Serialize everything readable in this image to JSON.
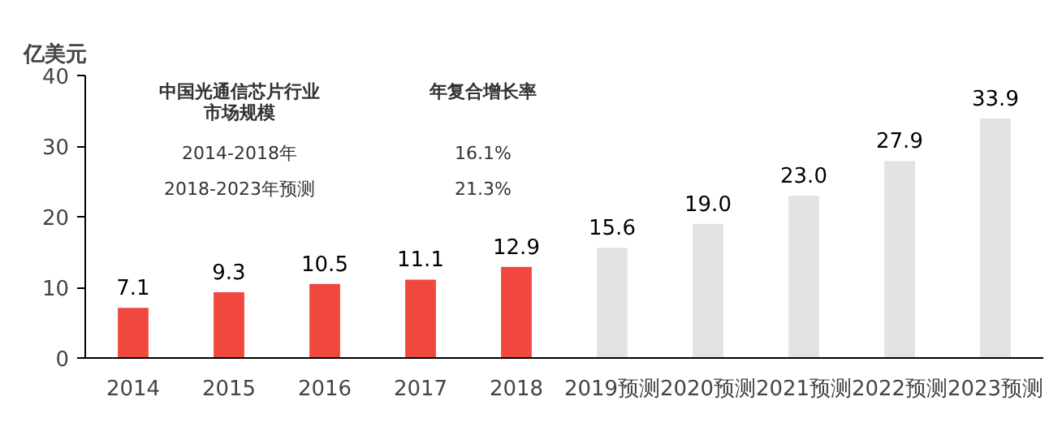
{
  "chart_data": {
    "type": "bar",
    "ylabel": "亿美元",
    "categories": [
      "2014",
      "2015",
      "2016",
      "2017",
      "2018",
      "2019预测",
      "2020预测",
      "2021预测",
      "2022预测",
      "2023预测"
    ],
    "values": [
      7.1,
      9.3,
      10.5,
      11.1,
      12.9,
      15.6,
      19.0,
      23.0,
      27.9,
      33.9
    ],
    "colors": [
      "#f0483e",
      "#f0483e",
      "#f0483e",
      "#f0483e",
      "#f0483e",
      "#e3e3e3",
      "#e3e3e3",
      "#e3e3e3",
      "#e3e3e3",
      "#e3e3e3"
    ],
    "value_labels": [
      "7.1",
      "9.3",
      "10.5",
      "11.1",
      "12.9",
      "15.6",
      "19.0",
      "23.0",
      "27.9",
      "33.9"
    ],
    "ylim": [
      0,
      40
    ],
    "yticks": [
      0,
      10,
      20,
      30,
      40
    ],
    "grid": false,
    "annotations": [
      "中国光通信芯片行业",
      "市场规模",
      "年复合增长率",
      "2014-2018年",
      "16.1%",
      "2018-2023年预测",
      "21.3%"
    ]
  }
}
